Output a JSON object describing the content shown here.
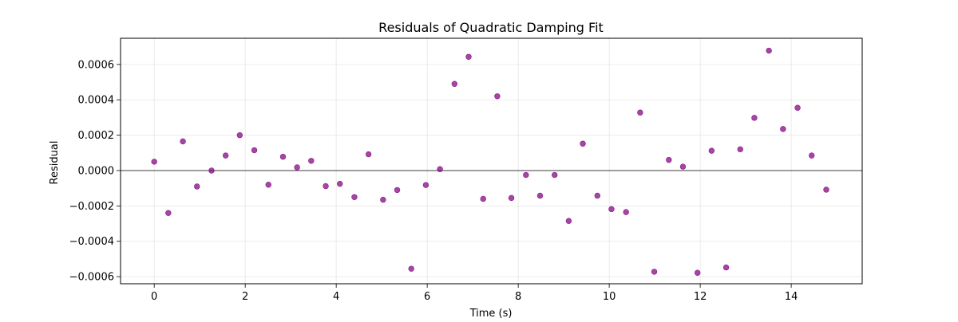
{
  "chart_data": {
    "type": "scatter",
    "title": "Residuals of Quadratic Damping Fit",
    "xlabel": "Time (s)",
    "ylabel": "Residual",
    "xlim": [
      -0.74,
      15.56
    ],
    "ylim": [
      -0.00064,
      0.000748
    ],
    "xticks": [
      0,
      2,
      4,
      6,
      8,
      10,
      12,
      14
    ],
    "xtick_labels": [
      "0",
      "2",
      "4",
      "6",
      "8",
      "10",
      "12",
      "14"
    ],
    "yticks": [
      -0.0006,
      -0.0004,
      -0.0002,
      0.0,
      0.0002,
      0.0004,
      0.0006
    ],
    "ytick_labels": [
      "−0.0006",
      "−0.0004",
      "−0.0002",
      "0.0000",
      "0.0002",
      "0.0004",
      "0.0006"
    ],
    "grid": true,
    "reference_line_y": 0,
    "point_color": "#800080",
    "series": [
      {
        "x": [
          0.0,
          0.31,
          0.63,
          0.94,
          1.26,
          1.57,
          1.88,
          2.2,
          2.51,
          2.83,
          3.14,
          3.45,
          3.77,
          4.08,
          4.4,
          4.71,
          5.03,
          5.34,
          5.65,
          5.97,
          6.28,
          6.6,
          6.91,
          7.23,
          7.54,
          7.85,
          8.17,
          8.48,
          8.8,
          9.11,
          9.42,
          9.74,
          10.05,
          10.37,
          10.68,
          10.99,
          11.31,
          11.62,
          11.94,
          12.25,
          12.57,
          12.88,
          13.19,
          13.51,
          13.82,
          14.14,
          14.45,
          14.77
        ],
        "y": [
          5e-05,
          -0.00024,
          0.000165,
          -9e-05,
          0.0,
          8.5e-05,
          0.0002,
          0.000115,
          -8e-05,
          7.8e-05,
          1.8e-05,
          5.5e-05,
          -8.8e-05,
          -7.5e-05,
          -0.00015,
          9.2e-05,
          -0.000165,
          -0.00011,
          -0.000555,
          -8.2e-05,
          8e-06,
          0.00049,
          0.000643,
          -0.00016,
          0.00042,
          -0.000155,
          -2.5e-05,
          -0.000142,
          -2.5e-05,
          -0.000285,
          0.000152,
          -0.000142,
          -0.000218,
          -0.000235,
          0.000328,
          -0.000572,
          6e-05,
          2.2e-05,
          -0.000578,
          0.000112,
          -0.000548,
          0.00012,
          0.000298,
          0.000678,
          0.000235,
          0.000355,
          8.5e-05,
          -0.000108
        ]
      }
    ]
  }
}
